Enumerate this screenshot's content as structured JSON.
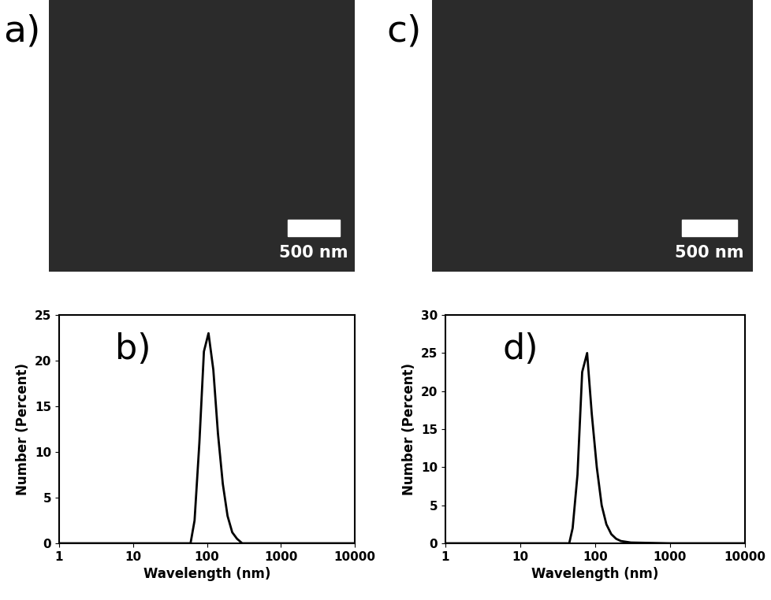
{
  "chart_data": [
    {
      "type": "line",
      "title": "b)",
      "x_label": "Wavelength (nm)",
      "y_label": "Number (Percent)",
      "log": "x",
      "color": "#000000",
      "x": [
        1,
        60,
        68,
        79,
        91,
        105,
        122,
        141,
        164,
        190,
        220,
        255,
        300,
        400,
        10000
      ],
      "values": [
        0,
        0,
        2.5,
        11,
        21,
        23,
        19,
        12,
        6.5,
        3,
        1.2,
        0.5,
        0,
        0,
        0
      ],
      "xlim": [
        1,
        10000
      ],
      "xticks": [
        1,
        10,
        100,
        1000,
        10000
      ],
      "ylim": [
        0,
        25
      ],
      "yticks": [
        0,
        5,
        10,
        15,
        20,
        25
      ]
    },
    {
      "type": "line",
      "title": "d)",
      "x_label": "Wavelength (nm)",
      "y_label": "Number (Percent)",
      "log": "x",
      "color": "#000000",
      "x": [
        1,
        45,
        50,
        58,
        67,
        78,
        90,
        105,
        122,
        141,
        164,
        190,
        220,
        300,
        1000,
        10000
      ],
      "values": [
        0,
        0,
        2,
        9,
        22.5,
        25,
        17,
        10,
        5,
        2.5,
        1.2,
        0.6,
        0.3,
        0.1,
        0,
        0
      ],
      "xlim": [
        1,
        10000
      ],
      "xticks": [
        1,
        10,
        100,
        1000,
        10000
      ],
      "ylim": [
        0,
        30
      ],
      "yticks": [
        0,
        5,
        10,
        15,
        20,
        25,
        30
      ]
    }
  ],
  "images": [
    {
      "label": "a)",
      "scale_bar": "500 nm"
    },
    {
      "label": "c)",
      "scale_bar": "500 nm"
    }
  ]
}
